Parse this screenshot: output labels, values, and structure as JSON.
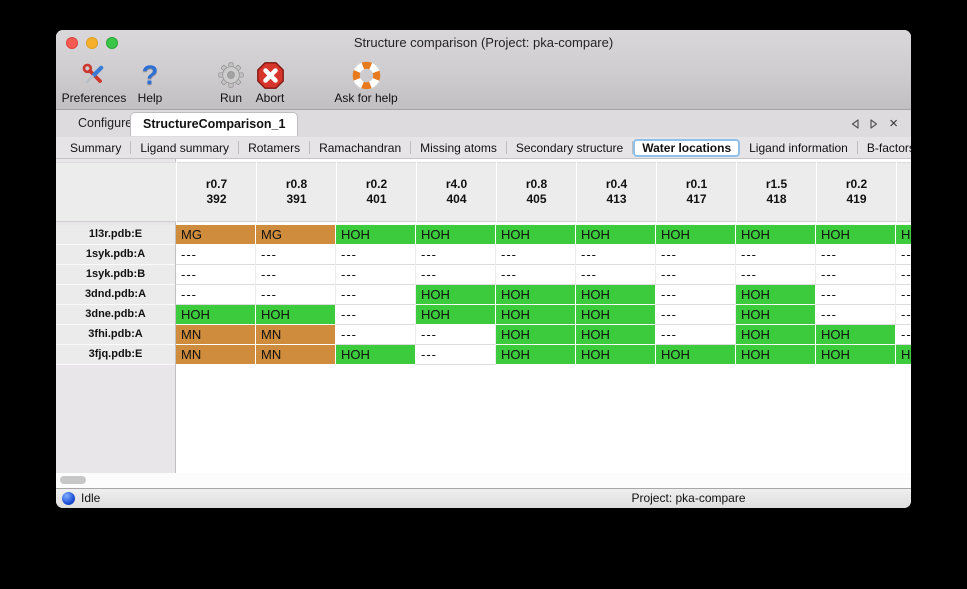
{
  "window": {
    "title": "Structure comparison (Project: pka-compare)"
  },
  "toolbar": {
    "items": [
      {
        "label": "Preferences",
        "icon": "tools-icon"
      },
      {
        "label": "Help",
        "icon": "question-icon"
      },
      {
        "label": "Run",
        "icon": "gear-icon"
      },
      {
        "label": "Abort",
        "icon": "stop-icon"
      },
      {
        "label": "Ask for help",
        "icon": "lifebuoy-icon"
      }
    ],
    "help_glyph": "?"
  },
  "main_tabs": {
    "items": [
      {
        "label": "Configure",
        "active": false
      },
      {
        "label": "StructureComparison_1",
        "active": true
      }
    ],
    "close_glyph": "×"
  },
  "result_tabs": {
    "items": [
      "Summary",
      "Ligand summary",
      "Rotamers",
      "Ramachandran",
      "Missing atoms",
      "Secondary structure",
      "Water locations",
      "Ligand information",
      "B-factors"
    ],
    "selected": "Water locations"
  },
  "water_table": {
    "columns": [
      {
        "line1": "r0.7",
        "line2": "392"
      },
      {
        "line1": "r0.8",
        "line2": "391"
      },
      {
        "line1": "r0.2",
        "line2": "401"
      },
      {
        "line1": "r4.0",
        "line2": "404"
      },
      {
        "line1": "r0.8",
        "line2": "405"
      },
      {
        "line1": "r0.4",
        "line2": "413"
      },
      {
        "line1": "r0.1",
        "line2": "417"
      },
      {
        "line1": "r1.5",
        "line2": "418"
      },
      {
        "line1": "r0.2",
        "line2": "419"
      },
      {
        "line1": "",
        "line2": ""
      }
    ],
    "rows": [
      {
        "label": "1l3r.pdb:E",
        "cells": [
          "MG",
          "MG",
          "HOH",
          "HOH",
          "HOH",
          "HOH",
          "HOH",
          "HOH",
          "HOH",
          "HOH"
        ]
      },
      {
        "label": "1syk.pdb:A",
        "cells": [
          "---",
          "---",
          "---",
          "---",
          "---",
          "---",
          "---",
          "---",
          "---",
          "---"
        ]
      },
      {
        "label": "1syk.pdb:B",
        "cells": [
          "---",
          "---",
          "---",
          "---",
          "---",
          "---",
          "---",
          "---",
          "---",
          "---"
        ]
      },
      {
        "label": "3dnd.pdb:A",
        "cells": [
          "---",
          "---",
          "---",
          "HOH",
          "HOH",
          "HOH",
          "---",
          "HOH",
          "---",
          "---"
        ]
      },
      {
        "label": "3dne.pdb:A",
        "cells": [
          "HOH",
          "HOH",
          "---",
          "HOH",
          "HOH",
          "HOH",
          "---",
          "HOH",
          "---",
          "---"
        ]
      },
      {
        "label": "3fhi.pdb:A",
        "cells": [
          "MN",
          "MN",
          "---",
          "---",
          "HOH",
          "HOH",
          "---",
          "HOH",
          "HOH",
          "---"
        ]
      },
      {
        "label": "3fjq.pdb:E",
        "cells": [
          "MN",
          "MN",
          "HOH",
          "---",
          "HOH",
          "HOH",
          "HOH",
          "HOH",
          "HOH",
          "HOH"
        ]
      }
    ],
    "colors": {
      "water": "#3dcb3e",
      "ion": "#d08c3d",
      "empty": "#ffffff"
    }
  },
  "status_bar": {
    "state": "Idle",
    "project": "Project: pka-compare"
  }
}
